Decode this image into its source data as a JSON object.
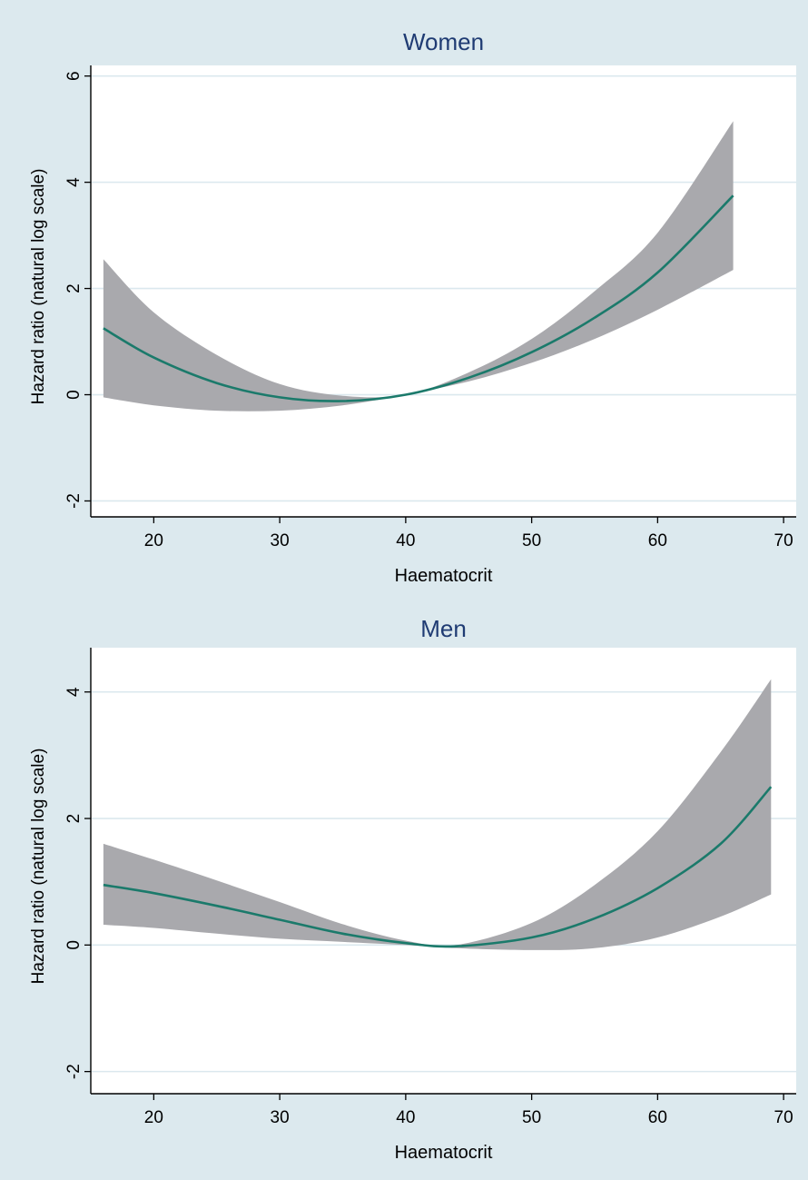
{
  "colors": {
    "background": "#dce9ee",
    "plot_area": "#ffffff",
    "gridline": "#dbe8ee",
    "band": "#a9a9ad",
    "line": "#1b7a6b",
    "title": "#1f3b73",
    "text": "#000000"
  },
  "chart_data": [
    {
      "type": "line",
      "title": "Women",
      "xlabel": "Haematocrit",
      "ylabel": "Hazard ratio (natural log scale)",
      "xlim": [
        15,
        71
      ],
      "ylim": [
        -2.3,
        6.2
      ],
      "xticks": [
        20,
        30,
        40,
        50,
        60,
        70
      ],
      "yticks": [
        -2,
        0,
        2,
        4,
        6
      ],
      "grid": true,
      "series": [
        {
          "x": [
            16,
            20,
            25,
            30,
            35,
            40,
            45,
            50,
            55,
            60,
            66
          ],
          "y": [
            1.25,
            0.7,
            0.22,
            -0.05,
            -0.12,
            0.0,
            0.32,
            0.8,
            1.45,
            2.3,
            3.75
          ],
          "lower": [
            -0.05,
            -0.2,
            -0.3,
            -0.3,
            -0.2,
            0.0,
            0.25,
            0.6,
            1.05,
            1.6,
            2.35
          ],
          "upper": [
            2.55,
            1.55,
            0.75,
            0.2,
            -0.02,
            0.0,
            0.42,
            1.05,
            1.95,
            3.05,
            5.15
          ]
        }
      ]
    },
    {
      "type": "line",
      "title": "Men",
      "xlabel": "Haematocrit",
      "ylabel": "Hazard ratio (natural log scale)",
      "xlim": [
        15,
        71
      ],
      "ylim": [
        -2.35,
        4.7
      ],
      "xticks": [
        20,
        30,
        40,
        50,
        60,
        70
      ],
      "yticks": [
        -2,
        0,
        2,
        4
      ],
      "grid": true,
      "series": [
        {
          "x": [
            16,
            20,
            25,
            30,
            35,
            40,
            44,
            50,
            55,
            60,
            65,
            69
          ],
          "y": [
            0.95,
            0.82,
            0.62,
            0.4,
            0.18,
            0.03,
            -0.02,
            0.12,
            0.42,
            0.9,
            1.6,
            2.5
          ],
          "lower": [
            0.32,
            0.27,
            0.18,
            0.1,
            0.05,
            0.0,
            -0.05,
            -0.08,
            -0.05,
            0.12,
            0.45,
            0.8
          ],
          "upper": [
            1.6,
            1.35,
            1.02,
            0.68,
            0.33,
            0.07,
            0.0,
            0.35,
            0.95,
            1.8,
            3.05,
            4.2
          ]
        }
      ]
    }
  ]
}
